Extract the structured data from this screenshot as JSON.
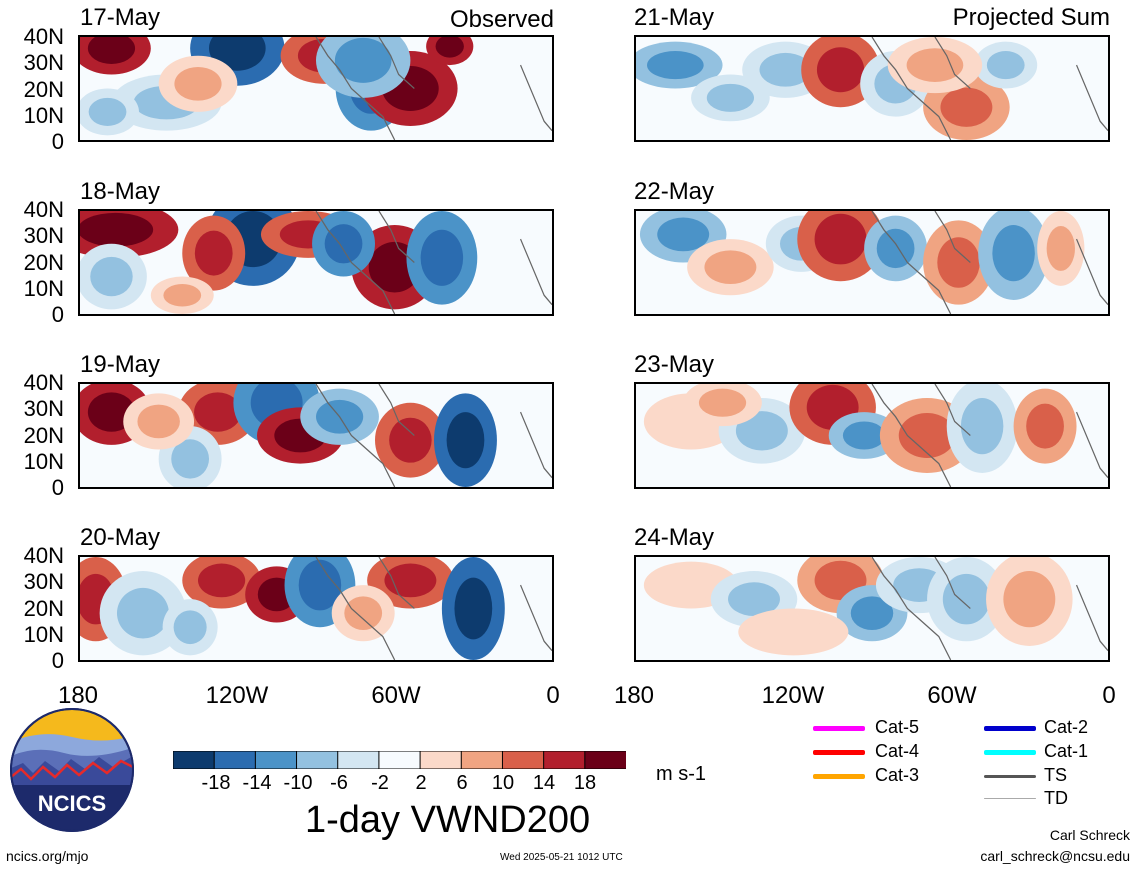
{
  "observed_label": "Observed",
  "projected_label": "Projected Sum",
  "observed_panels": [
    {
      "date": "17-May"
    },
    {
      "date": "18-May"
    },
    {
      "date": "19-May"
    },
    {
      "date": "20-May"
    }
  ],
  "projected_panels": [
    {
      "date": "21-May"
    },
    {
      "date": "22-May"
    },
    {
      "date": "23-May"
    },
    {
      "date": "24-May"
    }
  ],
  "y_ticks": [
    "40N",
    "30N",
    "20N",
    "10N",
    "0"
  ],
  "x_ticks": [
    "180",
    "120W",
    "60W",
    "0"
  ],
  "colorbar": {
    "labels": [
      "-18",
      "-14",
      "-10",
      "-6",
      "-2",
      "2",
      "6",
      "10",
      "14",
      "18"
    ],
    "colors": [
      "#0d3b6e",
      "#2b6cb0",
      "#4b93c8",
      "#93c1e0",
      "#d3e6f2",
      "#f7fbfe",
      "#fbd9c9",
      "#f0a482",
      "#d9604a",
      "#b21f2d",
      "#6b0018"
    ],
    "units": "m s-1",
    "title": "1-day VWND200"
  },
  "track_legend": [
    {
      "label": "Cat-5",
      "color": "#ff00ff"
    },
    {
      "label": "Cat-4",
      "color": "#ff0000"
    },
    {
      "label": "Cat-3",
      "color": "#ffa500"
    },
    {
      "label": "Cat-2",
      "color": "#0000cc"
    },
    {
      "label": "Cat-1",
      "color": "#00ffff"
    },
    {
      "label": "TS",
      "color": "#555555"
    },
    {
      "label": "TD",
      "color": "#aaaaaa"
    }
  ],
  "logo_text": "NCICS",
  "footer": {
    "url": "ncics.org/mjo",
    "timestamp": "Wed 2025-05-21 1012 UTC",
    "author": "Carl Schreck",
    "email": "carl_schreck@ncsu.edu"
  }
}
